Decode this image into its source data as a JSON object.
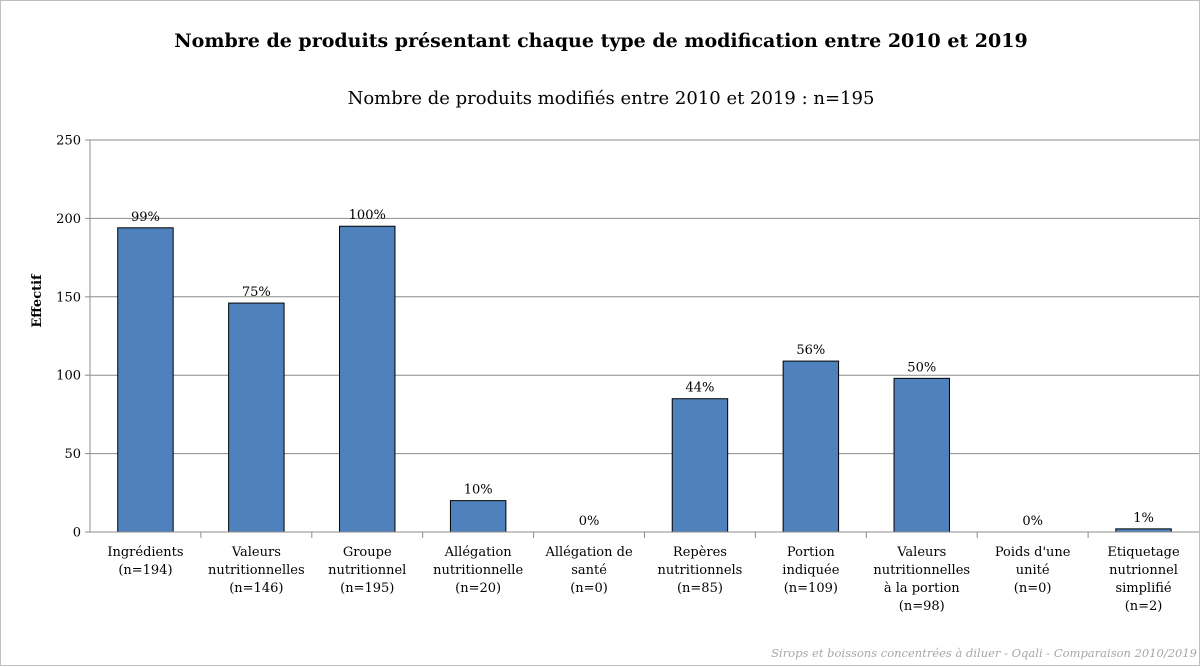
{
  "chart_data": {
    "type": "bar",
    "title": "Nombre de produits présentant chaque type de modification entre 2010 et 2019",
    "subtitle": "Nombre de produits modifiés entre 2010 et 2019 : n=195",
    "ylabel": "Effectif",
    "xlabel": "",
    "ylim": [
      0,
      250
    ],
    "yticks": [
      0,
      50,
      100,
      150,
      200,
      250
    ],
    "grid": true,
    "legend": "none",
    "bar_color": "#4f81bd",
    "categories": [
      [
        "Ingrédients",
        "(n=194)"
      ],
      [
        "Valeurs",
        "nutritionnelles",
        "(n=146)"
      ],
      [
        "Groupe",
        "nutritionnel",
        "(n=195)"
      ],
      [
        "Allégation",
        "nutritionnelle",
        "(n=20)"
      ],
      [
        "Allégation de",
        "santé",
        "(n=0)"
      ],
      [
        "Repères",
        "nutritionnels",
        "(n=85)"
      ],
      [
        "Portion",
        "indiquée",
        "(n=109)"
      ],
      [
        "Valeurs",
        "nutritionnelles",
        "à la portion",
        "(n=98)"
      ],
      [
        "Poids d'une",
        "unité",
        "(n=0)"
      ],
      [
        "Etiquetage",
        "nutrionnel",
        "simplifié",
        "(n=2)"
      ]
    ],
    "values": [
      194,
      146,
      195,
      20,
      0,
      85,
      109,
      98,
      0,
      2
    ],
    "data_labels": [
      "99%",
      "75%",
      "100%",
      "10%",
      "0%",
      "44%",
      "56%",
      "50%",
      "0%",
      "1%"
    ],
    "source": "Sirops et boissons concentrées à diluer - Oqali - Comparaison 2010/2019"
  }
}
